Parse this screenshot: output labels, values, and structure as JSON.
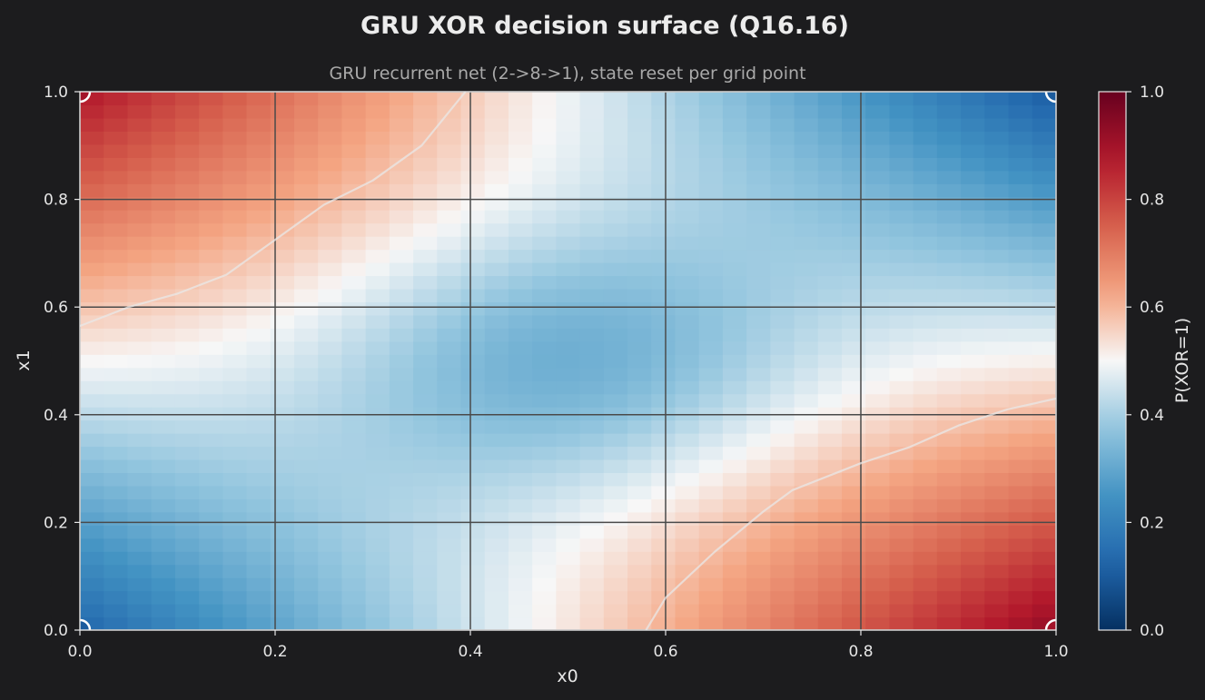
{
  "chart_data": {
    "type": "heatmap",
    "title": "GRU XOR decision surface (Q16.16)",
    "subtitle": "GRU recurrent net (2->8->1), state reset per grid point",
    "xlabel": "x0",
    "ylabel": "x1",
    "colorbar_label": "P(XOR=1)",
    "xlim": [
      0.0,
      1.0
    ],
    "ylim": [
      0.0,
      1.0
    ],
    "clim": [
      0.0,
      1.0
    ],
    "colormap": "RdBu_r",
    "grid": true,
    "grid_color": "#4a4a4a",
    "x_ticks": [
      "0.0",
      "0.2",
      "0.4",
      "0.6",
      "0.8",
      "1.0"
    ],
    "y_ticks": [
      "0.0",
      "0.2",
      "0.4",
      "0.6",
      "0.8",
      "1.0"
    ],
    "colorbar_ticks": [
      "0.0",
      "0.2",
      "0.4",
      "0.6",
      "0.8",
      "1.0"
    ],
    "grid_resolution": 41,
    "corner_values": {
      "x0_0_x1_0": 0.13,
      "x0_1_x1_0": 0.93,
      "x0_0_x1_1": 0.88,
      "x0_1_x1_1": 0.1,
      "center": 0.31
    },
    "decision_boundary": {
      "level": 0.5,
      "color": "#e8e8e8",
      "upper_left": [
        [
          0.0,
          0.565
        ],
        [
          0.05,
          0.6
        ],
        [
          0.1,
          0.625
        ],
        [
          0.15,
          0.66
        ],
        [
          0.2,
          0.725
        ],
        [
          0.25,
          0.79
        ],
        [
          0.3,
          0.835
        ],
        [
          0.35,
          0.9
        ],
        [
          0.395,
          1.0
        ]
      ],
      "lower_right": [
        [
          0.58,
          0.0
        ],
        [
          0.6,
          0.06
        ],
        [
          0.65,
          0.145
        ],
        [
          0.7,
          0.22
        ],
        [
          0.73,
          0.26
        ],
        [
          0.8,
          0.31
        ],
        [
          0.85,
          0.34
        ],
        [
          0.9,
          0.38
        ],
        [
          0.95,
          0.41
        ],
        [
          1.0,
          0.43
        ]
      ]
    },
    "training_points": [
      {
        "x0": 0,
        "x1": 0,
        "label": 0
      },
      {
        "x0": 1,
        "x1": 0,
        "label": 1
      },
      {
        "x0": 0,
        "x1": 1,
        "label": 1
      },
      {
        "x0": 1,
        "x1": 1,
        "label": 0
      }
    ]
  }
}
